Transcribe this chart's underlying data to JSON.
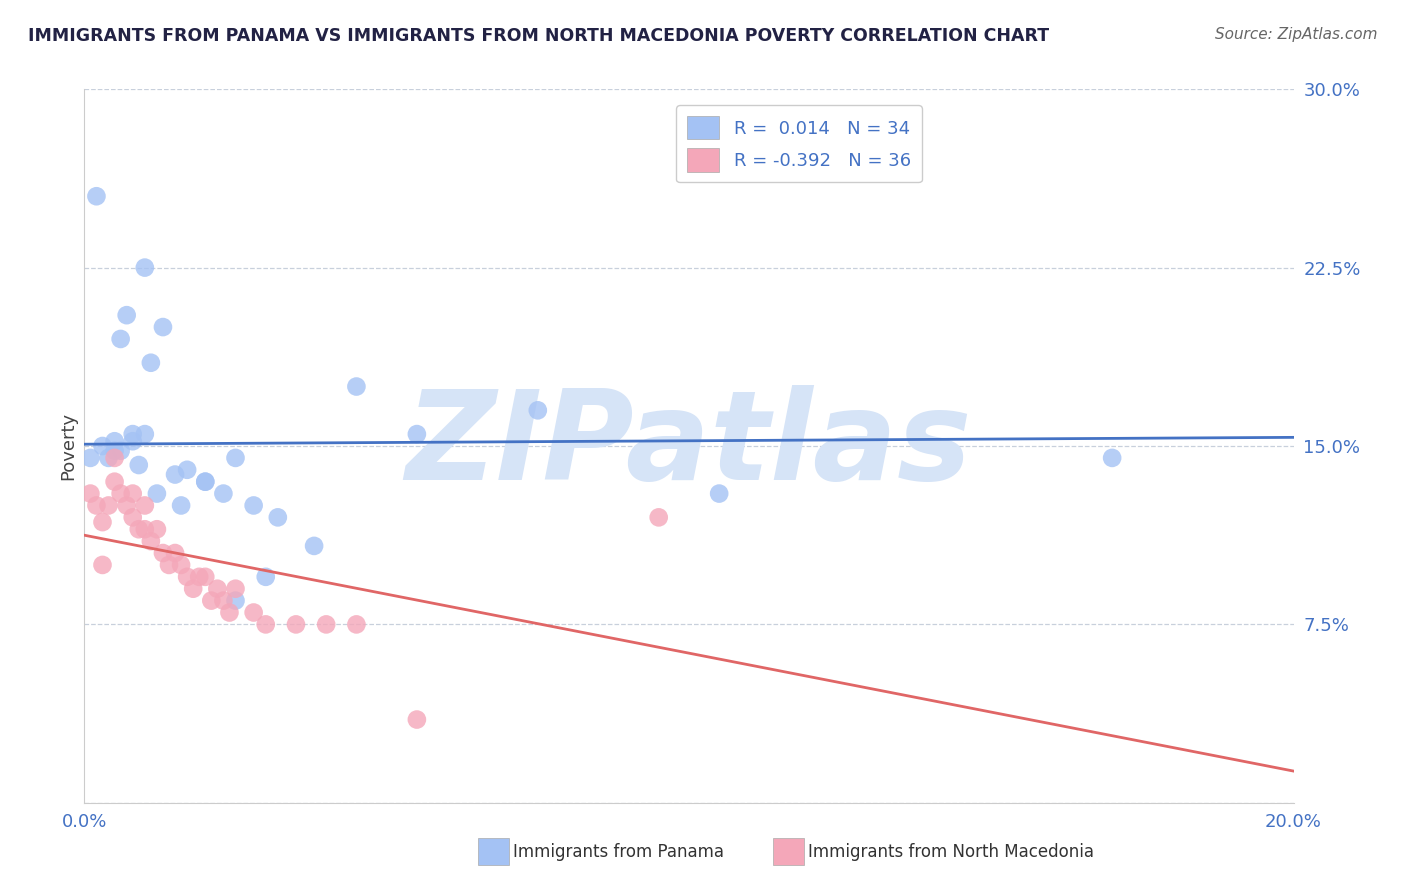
{
  "title": "IMMIGRANTS FROM PANAMA VS IMMIGRANTS FROM NORTH MACEDONIA POVERTY CORRELATION CHART",
  "source": "Source: ZipAtlas.com",
  "ylabel": "Poverty",
  "xlim": [
    0.0,
    20.0
  ],
  "ylim": [
    0.0,
    30.0
  ],
  "yticks": [
    0.0,
    7.5,
    15.0,
    22.5,
    30.0
  ],
  "ytick_labels": [
    "",
    "7.5%",
    "15.0%",
    "22.5%",
    "30.0%"
  ],
  "legend_label1": "Immigrants from Panama",
  "legend_label2": "Immigrants from North Macedonia",
  "R1": 0.014,
  "N1": 34,
  "R2": -0.392,
  "N2": 36,
  "color_blue": "#a4c2f4",
  "color_pink": "#f4a7b9",
  "color_blue_line": "#4472c4",
  "color_pink_line": "#e06666",
  "watermark": "ZIPatlas",
  "watermark_color": "#d6e4f7",
  "panama_x": [
    0.1,
    0.3,
    0.5,
    0.5,
    0.6,
    0.7,
    0.8,
    0.9,
    1.0,
    1.1,
    1.3,
    1.5,
    1.7,
    2.0,
    2.3,
    2.5,
    2.8,
    3.2,
    3.8,
    5.5,
    7.5,
    10.5,
    17.0,
    0.2,
    0.4,
    0.6,
    0.8,
    1.2,
    1.6,
    2.0,
    2.5,
    3.0,
    4.5,
    1.0
  ],
  "panama_y": [
    14.5,
    15.0,
    14.8,
    15.2,
    19.5,
    20.5,
    15.5,
    14.2,
    15.5,
    18.5,
    20.0,
    13.8,
    14.0,
    13.5,
    13.0,
    14.5,
    12.5,
    12.0,
    10.8,
    15.5,
    16.5,
    13.0,
    14.5,
    25.5,
    14.5,
    14.8,
    15.2,
    13.0,
    12.5,
    13.5,
    8.5,
    9.5,
    17.5,
    22.5
  ],
  "macedonia_x": [
    0.1,
    0.2,
    0.3,
    0.4,
    0.5,
    0.5,
    0.6,
    0.7,
    0.8,
    0.8,
    0.9,
    1.0,
    1.0,
    1.1,
    1.2,
    1.3,
    1.4,
    1.5,
    1.6,
    1.7,
    1.8,
    1.9,
    2.0,
    2.1,
    2.2,
    2.3,
    2.4,
    2.5,
    2.8,
    3.0,
    3.5,
    4.0,
    4.5,
    5.5,
    9.5,
    0.3
  ],
  "macedonia_y": [
    13.0,
    12.5,
    11.8,
    12.5,
    13.5,
    14.5,
    13.0,
    12.5,
    12.0,
    13.0,
    11.5,
    11.5,
    12.5,
    11.0,
    11.5,
    10.5,
    10.0,
    10.5,
    10.0,
    9.5,
    9.0,
    9.5,
    9.5,
    8.5,
    9.0,
    8.5,
    8.0,
    9.0,
    8.0,
    7.5,
    7.5,
    7.5,
    7.5,
    3.5,
    12.0,
    10.0
  ]
}
